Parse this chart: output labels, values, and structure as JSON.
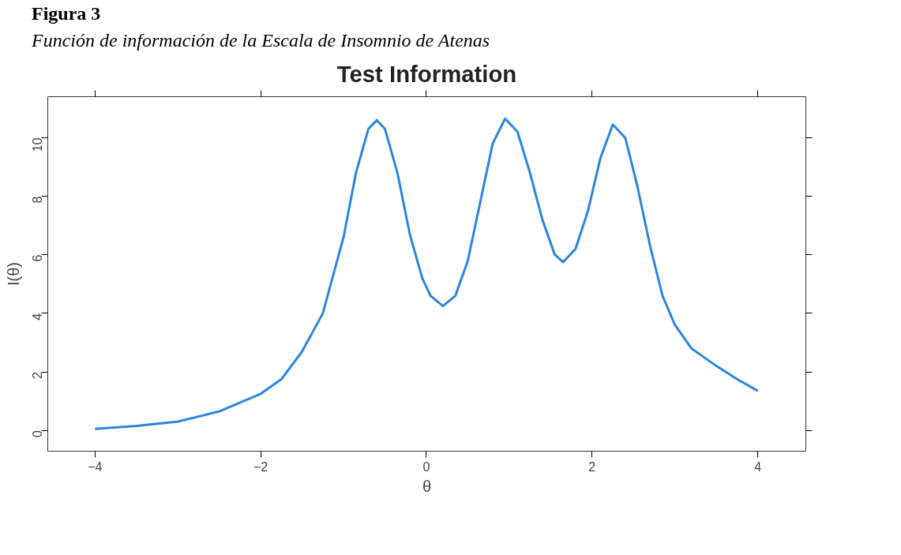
{
  "chart_data": {
    "type": "line",
    "title": "Test Information",
    "xlabel": "θ",
    "ylabel": "I(θ)",
    "annotations": [
      "Figura 3",
      "Función de información de la Escala de Insomnio de Atenas"
    ],
    "x": [
      -4,
      -3.5,
      -3,
      -2.5,
      -2,
      -1.75,
      -1.5,
      -1.25,
      -1.0,
      -0.85,
      -0.7,
      -0.6,
      -0.5,
      -0.35,
      -0.2,
      -0.05,
      0.05,
      0.2,
      0.35,
      0.5,
      0.65,
      0.8,
      0.95,
      1.1,
      1.25,
      1.4,
      1.55,
      1.65,
      1.8,
      1.95,
      2.1,
      2.25,
      2.4,
      2.55,
      2.7,
      2.85,
      3.0,
      3.2,
      3.5,
      3.75,
      4
    ],
    "series": [
      {
        "color": "#2a86e0",
        "values": [
          0.05,
          0.15,
          0.3,
          0.65,
          1.25,
          1.75,
          2.7,
          4.0,
          6.6,
          8.8,
          10.3,
          10.6,
          10.3,
          8.8,
          6.7,
          5.2,
          4.6,
          4.25,
          4.6,
          5.8,
          7.8,
          9.8,
          10.65,
          10.2,
          8.8,
          7.2,
          6.0,
          5.75,
          6.2,
          7.5,
          9.3,
          10.45,
          10.0,
          8.3,
          6.3,
          4.6,
          3.6,
          2.8,
          2.2,
          1.75,
          1.35
        ]
      }
    ],
    "xlim": [
      -4.57,
      4.58
    ],
    "ylim": [
      -0.71,
      11.4
    ],
    "xticks": [
      -4,
      -2,
      0,
      2,
      4
    ],
    "yticks": [
      0,
      2,
      4,
      6,
      8,
      10
    ],
    "grid": false,
    "marker": "none",
    "line_style": "solid"
  }
}
